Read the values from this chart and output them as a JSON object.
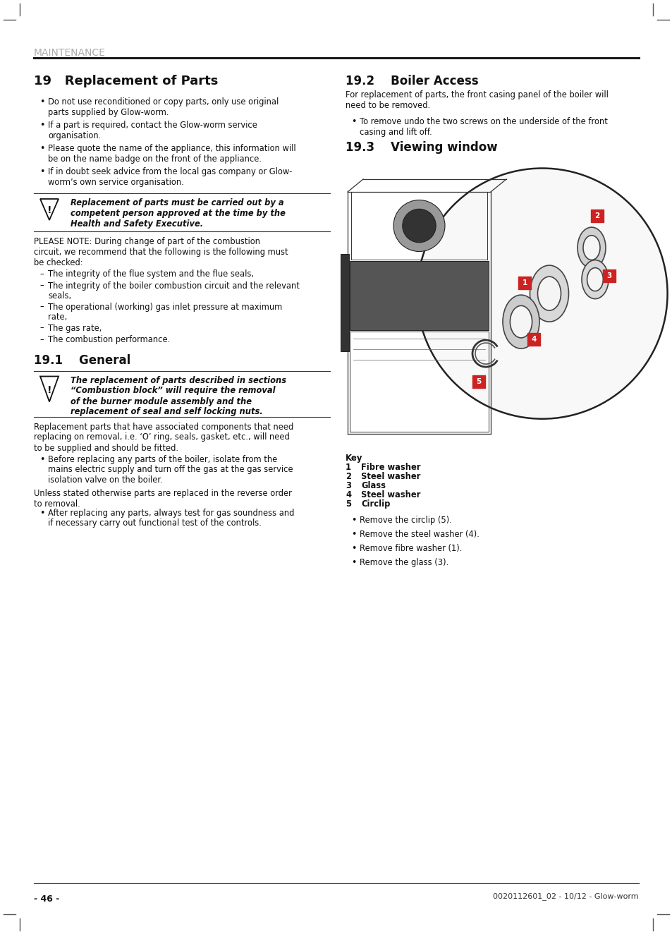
{
  "page_bg": "#ffffff",
  "header_text": "MAINTENANCE",
  "header_color": "#aaaaaa",
  "header_line_color": "#1a1a1a",
  "footer_page": "- 46 -",
  "footer_ref": "0020112601_02 - 10/12 - Glow-worm",
  "left_col": {
    "title": "19   Replacement of Parts",
    "bullets": [
      "Do not use reconditioned or copy parts, only use original\nparts supplied by Glow-worm.",
      "If a part is required, contact the Glow-worm service\norganisation.",
      "Please quote the name of the appliance, this information will\nbe on the name badge on the front of the appliance.",
      "If in doubt seek advice from the local gas company or Glow-\nworm’s own service organisation."
    ],
    "warning1_text": "Replacement of parts must be carried out by a\ncompetent person approved at the time by the\nHealth and Safety Executive.",
    "please_note": "PLEASE NOTE: During change of part of the combustion\ncircuit, we recommend that the following is the following must\nbe checked:",
    "dashes": [
      "The integrity of the flue system and the flue seals,",
      "The integrity of the boiler combustion circuit and the relevant\nseals,",
      "The operational (working) gas inlet pressure at maximum\nrate,",
      "The gas rate,",
      "The combustion performance."
    ],
    "sub_title": "19.1    General",
    "warning2_text": "The replacement of parts described in sections\n“Combustion block” will require the removal\nof the burner module assembly and the\nreplacement of seal and self locking nuts.",
    "replacement_text": "Replacement parts that have associated components that need\nreplacing on removal, i.e. ‘O’ ring, seals, gasket, etc., will need\nto be supplied and should be fitted.",
    "before_bullet": "Before replacing any parts of the boiler, isolate from the\nmains electric supply and turn off the gas at the gas service\nisolation valve on the boiler.",
    "unless_text": "Unless stated otherwise parts are replaced in the reverse order\nto removal.",
    "after_bullet": "After replacing any parts, always test for gas soundness and\nif necessary carry out functional test of the controls."
  },
  "right_col": {
    "title_192": "19.2    Boiler Access",
    "boiler_access_text": "For replacement of parts, the front casing panel of the boiler will\nneed to be removed.",
    "boiler_bullet": "To remove undo the two screws on the underside of the front\ncasing and lift off.",
    "title_193": "19.3    Viewing window",
    "key_header": "Key",
    "key_items": [
      [
        "1",
        "Fibre washer"
      ],
      [
        "2",
        "Steel washer"
      ],
      [
        "3",
        "Glass"
      ],
      [
        "4",
        "Steel washer"
      ],
      [
        "5",
        "Circlip"
      ]
    ],
    "instructions": [
      "Remove the circlip (5).",
      "Remove the steel washer (4).",
      "Remove fibre washer (1).",
      "Remove the glass (3)."
    ]
  }
}
